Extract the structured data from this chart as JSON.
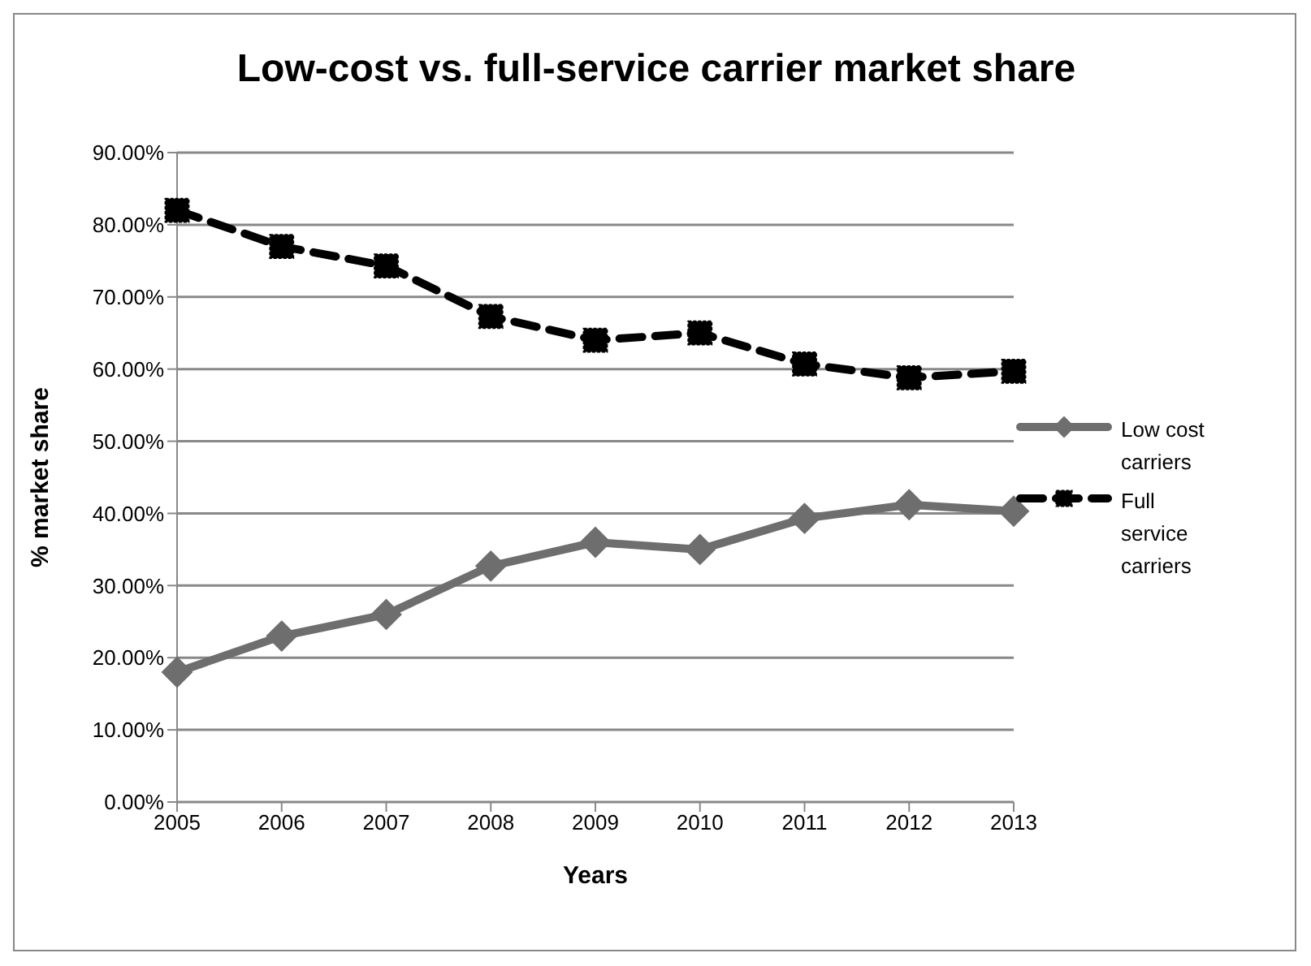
{
  "chart_data": {
    "type": "line",
    "title": "Low-cost vs. full-service carrier market share",
    "xlabel": "Years",
    "ylabel": "% market share",
    "categories": [
      "2005",
      "2006",
      "2007",
      "2008",
      "2009",
      "2010",
      "2011",
      "2012",
      "2013"
    ],
    "series": [
      {
        "name": "Low cost carriers",
        "color": "#6e6e6e",
        "marker": "diamond",
        "line_style": "solid",
        "values": [
          18,
          23,
          26,
          32.7,
          36,
          35,
          39.3,
          41.2,
          40.3
        ]
      },
      {
        "name": "Full service carriers",
        "color": "#000000",
        "marker": "square",
        "line_style": "dashed",
        "values": [
          82,
          77,
          74.3,
          67.3,
          64,
          65,
          60.7,
          58.8,
          59.7
        ]
      }
    ],
    "ylim": [
      0,
      90
    ],
    "yticks": [
      {
        "value": 0,
        "label": "0.00%"
      },
      {
        "value": 10,
        "label": "10.00%"
      },
      {
        "value": 20,
        "label": "20.00%"
      },
      {
        "value": 30,
        "label": "30.00%"
      },
      {
        "value": 40,
        "label": "40.00%"
      },
      {
        "value": 50,
        "label": "50.00%"
      },
      {
        "value": 60,
        "label": "60.00%"
      },
      {
        "value": 70,
        "label": "70.00%"
      },
      {
        "value": 80,
        "label": "80.00%"
      },
      {
        "value": 90,
        "label": "90.00%"
      }
    ],
    "grid": "y",
    "legend": "right"
  }
}
